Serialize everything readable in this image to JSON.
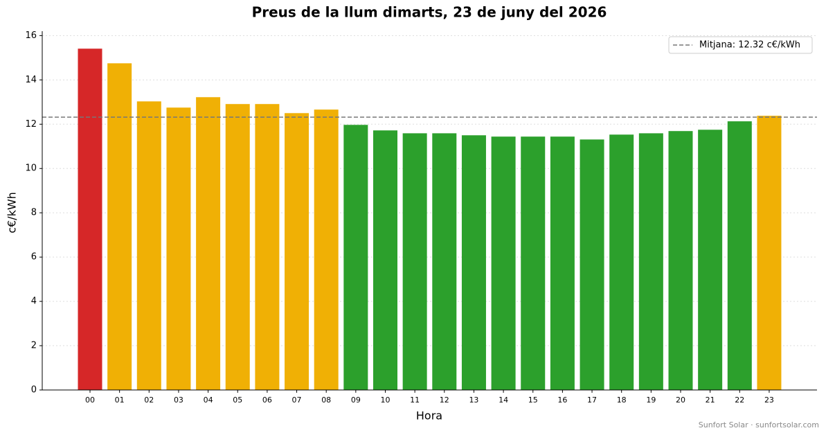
{
  "chart_data": {
    "type": "bar",
    "title": "Preus de la llum dimarts, 23 de juny del 2026",
    "x_label": "Hora",
    "y_label": "c€/kWh",
    "categories": [
      "00",
      "01",
      "02",
      "03",
      "04",
      "05",
      "06",
      "07",
      "08",
      "09",
      "10",
      "11",
      "12",
      "13",
      "14",
      "15",
      "16",
      "17",
      "18",
      "19",
      "20",
      "21",
      "22",
      "23"
    ],
    "values": [
      15.41,
      14.75,
      13.03,
      12.75,
      13.22,
      12.91,
      12.91,
      12.5,
      12.66,
      11.97,
      11.72,
      11.59,
      11.59,
      11.5,
      11.44,
      11.44,
      11.44,
      11.31,
      11.53,
      11.59,
      11.69,
      11.75,
      12.13,
      12.38
    ],
    "colors": [
      "#d62728",
      "#f0b005",
      "#f0b005",
      "#f0b005",
      "#f0b005",
      "#f0b005",
      "#f0b005",
      "#f0b005",
      "#f0b005",
      "#2ca02c",
      "#2ca02c",
      "#2ca02c",
      "#2ca02c",
      "#2ca02c",
      "#2ca02c",
      "#2ca02c",
      "#2ca02c",
      "#2ca02c",
      "#2ca02c",
      "#2ca02c",
      "#2ca02c",
      "#2ca02c",
      "#2ca02c",
      "#f0b005"
    ],
    "mean": {
      "value": 12.32,
      "label": "Mitjana: 12.32 c€/kWh"
    },
    "ylim": [
      0,
      16.2
    ],
    "yticks": [
      0,
      2,
      4,
      6,
      8,
      10,
      12,
      14,
      16
    ],
    "grid": true,
    "legend_position": "upper right",
    "footer": "Sunfort Solar · sunfortsolar.com"
  }
}
